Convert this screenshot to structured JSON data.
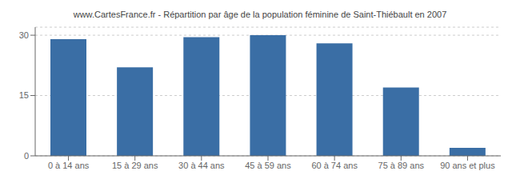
{
  "chart_data": {
    "type": "bar",
    "title": "www.CartesFrance.fr - Répartition par âge de la population féminine de Saint-Thiébault en 2007",
    "categories": [
      "0 à 14 ans",
      "15 à 29 ans",
      "30 à 44 ans",
      "45 à 59 ans",
      "60 à 74 ans",
      "75 à 89 ans",
      "90 ans et plus"
    ],
    "values": [
      29,
      22,
      29.5,
      30,
      28,
      17,
      2
    ],
    "color": "#3a6ea5",
    "ylim": [
      0,
      32
    ],
    "yticks": [
      0,
      15,
      30
    ],
    "grid": true
  }
}
